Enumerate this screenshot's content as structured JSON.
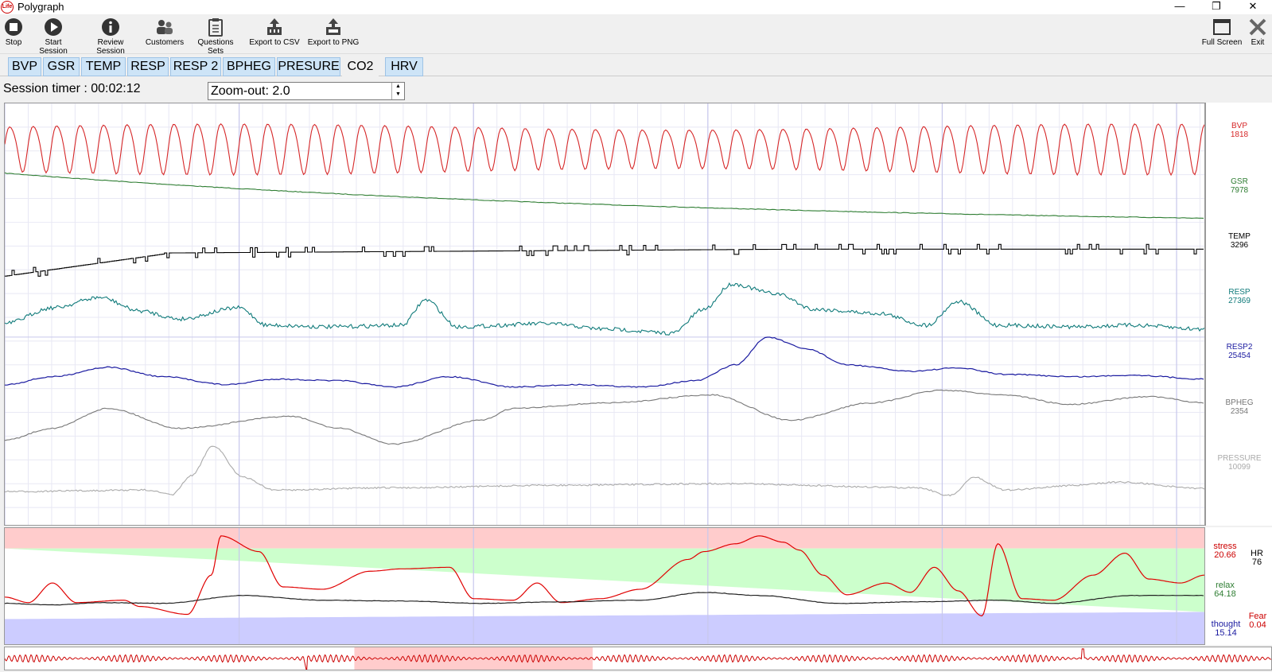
{
  "window": {
    "title": "Polygraph",
    "icon_text": "Life",
    "minimize": "—",
    "restore": "❐",
    "close": "✕"
  },
  "toolbar": {
    "stop": "Stop",
    "start": "Start Session",
    "review": "Review Session",
    "customers": "Customers",
    "questions": "Questions Sets",
    "csv": "Export to CSV",
    "png": "Export to PNG",
    "fullscreen": "Full Screen",
    "exit": "Exit"
  },
  "tabs": [
    "BVP",
    "GSR",
    "TEMP",
    "RESP",
    "RESP 2",
    "BPHEG",
    "PRESURE",
    "CO2",
    "HRV"
  ],
  "session": {
    "timer": "Session timer : 00:02:12",
    "zoom": "Zoom-out: 2.0"
  },
  "channels": [
    {
      "name": "BVP",
      "value": "1818",
      "color": "#d62728"
    },
    {
      "name": "GSR",
      "value": "7978",
      "color": "#2e7d32"
    },
    {
      "name": "TEMP",
      "value": "3296",
      "color": "#000000"
    },
    {
      "name": "RESP",
      "value": "27369",
      "color": "#0f7a7a"
    },
    {
      "name": "RESP2",
      "value": "25454",
      "color": "#1a1aa0"
    },
    {
      "name": "BPHEG",
      "value": "2354",
      "color": "#777777"
    },
    {
      "name": "PRESSURE",
      "value": "10099",
      "color": "#aaaaaa"
    }
  ],
  "emotions": {
    "stress_label": "stress",
    "stress_value": "20.66",
    "relax_label": "relax",
    "relax_value": "64.18",
    "thought_label": "thought",
    "thought_value": "15.14",
    "hr_label": "HR",
    "hr_value": "76",
    "fear_label": "Fear",
    "fear_value": "0.04",
    "stress_color": "#cc0000",
    "relax_color": "#2e7d32",
    "thought_color": "#1a1aa0"
  }
}
